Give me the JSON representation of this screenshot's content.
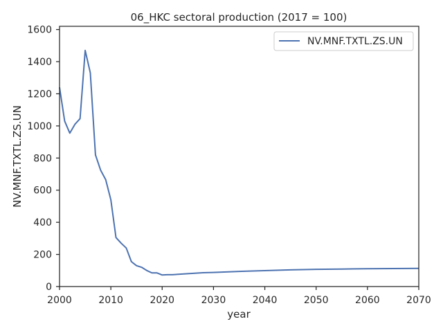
{
  "chart_data": {
    "type": "line",
    "title": "06_HKC sectoral production (2017 = 100)",
    "xlabel": "year",
    "ylabel": "NV.MNF.TXTL.ZS.UN",
    "xlim": [
      2000,
      2070
    ],
    "ylim": [
      0,
      1620
    ],
    "xticks": [
      2000,
      2010,
      2020,
      2030,
      2040,
      2050,
      2060,
      2070
    ],
    "yticks": [
      0,
      200,
      400,
      600,
      800,
      1000,
      1200,
      1400,
      1600
    ],
    "grid": false,
    "legend": {
      "position": "top-right",
      "entries": [
        "NV.MNF.TXTL.ZS.UN"
      ]
    },
    "series": [
      {
        "name": "NV.MNF.TXTL.ZS.UN",
        "color": "#4c72b0",
        "x": [
          2000,
          2001,
          2002,
          2003,
          2004,
          2005,
          2006,
          2007,
          2008,
          2009,
          2010,
          2011,
          2012,
          2013,
          2014,
          2015,
          2016,
          2017,
          2018,
          2019,
          2020,
          2021,
          2022,
          2025,
          2028,
          2030,
          2035,
          2040,
          2045,
          2050,
          2055,
          2060,
          2065,
          2070
        ],
        "y": [
          1240,
          1030,
          955,
          1010,
          1045,
          1470,
          1330,
          820,
          725,
          665,
          540,
          305,
          270,
          240,
          155,
          130,
          120,
          100,
          85,
          85,
          72,
          74,
          74,
          80,
          86,
          88,
          94,
          99,
          104,
          107,
          109,
          111,
          112,
          113
        ]
      }
    ]
  }
}
